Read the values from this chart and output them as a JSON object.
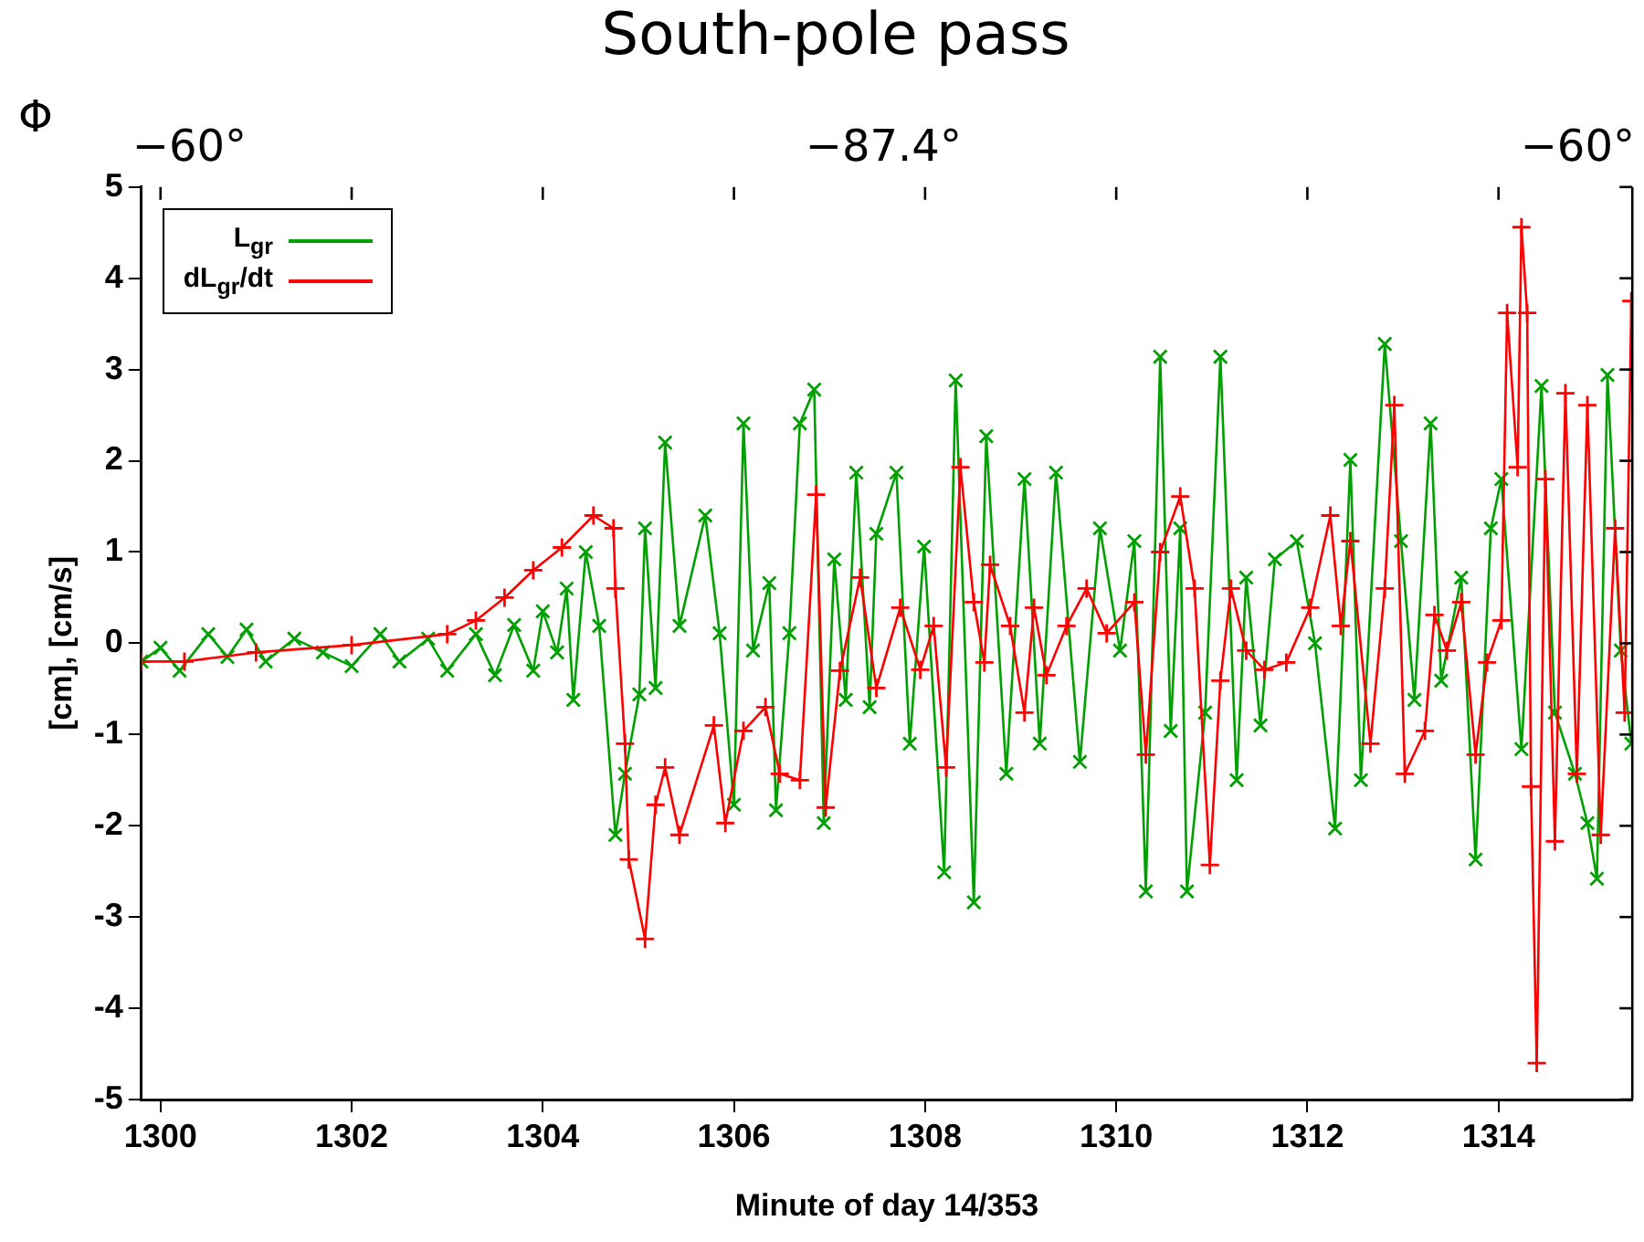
{
  "chart_data": {
    "type": "line",
    "title": "South-pole pass",
    "xlabel": "Minute of day 14/353",
    "ylabel": "[cm], [cm/s]",
    "annotations": [
      "Φ",
      "−60°",
      "−87.4°",
      "−60°"
    ],
    "xlim": [
      1299.8,
      1315.4
    ],
    "xticks": [
      1300,
      1302,
      1304,
      1306,
      1308,
      1310,
      1312,
      1314
    ],
    "ylim": [
      -5,
      5
    ],
    "yticks": [
      -5,
      -4,
      -3,
      -2,
      -1,
      0,
      1,
      2,
      3,
      4,
      5
    ],
    "grid": false,
    "legend": "top left",
    "marker": "cross",
    "line_style": "solid",
    "series": [
      {
        "name": "L$_{gr}$",
        "color": "#00a000",
        "x": [
          1299.8,
          1300.0,
          1300.2,
          1300.5,
          1300.7,
          1300.9,
          1301.1,
          1301.4,
          1301.7,
          1302.0,
          1302.3,
          1302.5,
          1302.8,
          1303.0,
          1303.3,
          1303.5,
          1303.7,
          1303.9,
          1304.0,
          1304.15,
          1304.25,
          1304.32,
          1304.45,
          1304.59,
          1304.76,
          1304.86,
          1305.01,
          1305.07,
          1305.18,
          1305.28,
          1305.43,
          1305.7,
          1305.85,
          1306.0,
          1306.1,
          1306.2,
          1306.37,
          1306.44,
          1306.58,
          1306.69,
          1306.84,
          1306.94,
          1307.05,
          1307.17,
          1307.28,
          1307.42,
          1307.49,
          1307.7,
          1307.84,
          1307.99,
          1308.2,
          1308.32,
          1308.51,
          1308.64,
          1308.85,
          1309.04,
          1309.2,
          1309.37,
          1309.62,
          1309.83,
          1310.04,
          1310.19,
          1310.31,
          1310.46,
          1310.57,
          1310.67,
          1310.74,
          1310.93,
          1311.09,
          1311.26,
          1311.36,
          1311.51,
          1311.66,
          1311.89,
          1312.08,
          1312.29,
          1312.45,
          1312.56,
          1312.81,
          1312.98,
          1313.12,
          1313.29,
          1313.4,
          1313.61,
          1313.76,
          1313.92,
          1314.03,
          1314.24,
          1314.45,
          1314.59,
          1314.8,
          1314.93,
          1315.03,
          1315.14,
          1315.28,
          1315.39
        ],
        "values": [
          -0.2,
          -0.05,
          -0.3,
          0.1,
          -0.15,
          0.15,
          -0.2,
          0.05,
          -0.1,
          -0.25,
          0.1,
          -0.2,
          0.05,
          -0.3,
          0.1,
          -0.35,
          0.2,
          -0.3,
          0.35,
          -0.1,
          0.6,
          -0.62,
          1.0,
          0.19,
          -2.1,
          -1.43,
          -0.56,
          1.26,
          -0.49,
          2.2,
          0.19,
          1.4,
          0.11,
          -1.77,
          2.41,
          -0.08,
          0.66,
          -1.83,
          0.11,
          2.41,
          2.78,
          -1.97,
          0.92,
          -0.62,
          1.87,
          -0.7,
          1.2,
          1.87,
          -1.1,
          1.06,
          -2.51,
          2.88,
          -2.84,
          2.27,
          -1.43,
          1.8,
          -1.1,
          1.87,
          -1.3,
          1.26,
          -0.08,
          1.12,
          -2.72,
          3.14,
          -0.96,
          1.26,
          -2.72,
          -0.76,
          3.14,
          -1.5,
          0.72,
          -0.9,
          0.92,
          1.12,
          0,
          -2.03,
          2.01,
          -1.5,
          3.28,
          1.12,
          -0.62,
          2.41,
          -0.41,
          0.72,
          -2.37,
          1.26,
          1.8,
          -1.16,
          2.82,
          -0.76,
          -1.43,
          -1.97,
          -2.58,
          2.94,
          -0.08,
          -1.1
        ]
      },
      {
        "name": "dL$_{gr}$/dt",
        "color": "#ff0000",
        "x": [
          1299.8,
          1300.25,
          1301.0,
          1302.0,
          1303.0,
          1303.3,
          1303.6,
          1303.9,
          1304.2,
          1304.53,
          1304.74,
          1304.76,
          1304.86,
          1304.9,
          1305.07,
          1305.18,
          1305.28,
          1305.43,
          1305.79,
          1305.91,
          1306.1,
          1306.33,
          1306.48,
          1306.69,
          1306.86,
          1306.96,
          1307.11,
          1307.32,
          1307.49,
          1307.74,
          1307.95,
          1308.09,
          1308.22,
          1308.37,
          1308.51,
          1308.62,
          1308.68,
          1308.89,
          1309.04,
          1309.14,
          1309.27,
          1309.48,
          1309.69,
          1309.9,
          1310.19,
          1310.31,
          1310.46,
          1310.67,
          1310.82,
          1310.98,
          1311.09,
          1311.2,
          1311.36,
          1311.55,
          1311.78,
          1312.03,
          1312.24,
          1312.35,
          1312.45,
          1312.66,
          1312.81,
          1312.91,
          1313.02,
          1313.23,
          1313.33,
          1313.46,
          1313.61,
          1313.76,
          1313.88,
          1314.03,
          1314.09,
          1314.2,
          1314.24,
          1314.3,
          1314.34,
          1314.4,
          1314.49,
          1314.59,
          1314.7,
          1314.82,
          1314.93,
          1315.07,
          1315.22,
          1315.32,
          1315.39
        ],
        "values": [
          -0.2,
          -0.2,
          -0.1,
          -0.02,
          0.1,
          0.25,
          0.5,
          0.8,
          1.05,
          1.4,
          1.26,
          0.6,
          -1.1,
          -2.37,
          -3.24,
          -1.77,
          -1.36,
          -2.1,
          -0.9,
          -1.97,
          -0.96,
          -0.7,
          -1.43,
          -1.5,
          1.63,
          -1.8,
          -0.3,
          0.72,
          -0.49,
          0.39,
          -0.29,
          0.19,
          -1.36,
          1.93,
          0.45,
          -0.21,
          0.86,
          0.19,
          -0.76,
          0.39,
          -0.35,
          0.19,
          0.6,
          0.11,
          0.45,
          -1.22,
          1.0,
          1.61,
          0.6,
          -2.43,
          -0.41,
          0.6,
          -0.08,
          -0.29,
          -0.21,
          0.39,
          1.4,
          0.19,
          1.12,
          -1.1,
          0.6,
          2.61,
          -1.43,
          -0.96,
          0.31,
          -0.08,
          0.45,
          -1.22,
          -0.21,
          0.25,
          3.62,
          1.93,
          4.56,
          3.62,
          -1.57,
          -4.6,
          1.8,
          -2.17,
          2.74,
          -1.43,
          2.61,
          -2.1,
          1.26,
          -0.76,
          3.75
        ]
      }
    ]
  }
}
